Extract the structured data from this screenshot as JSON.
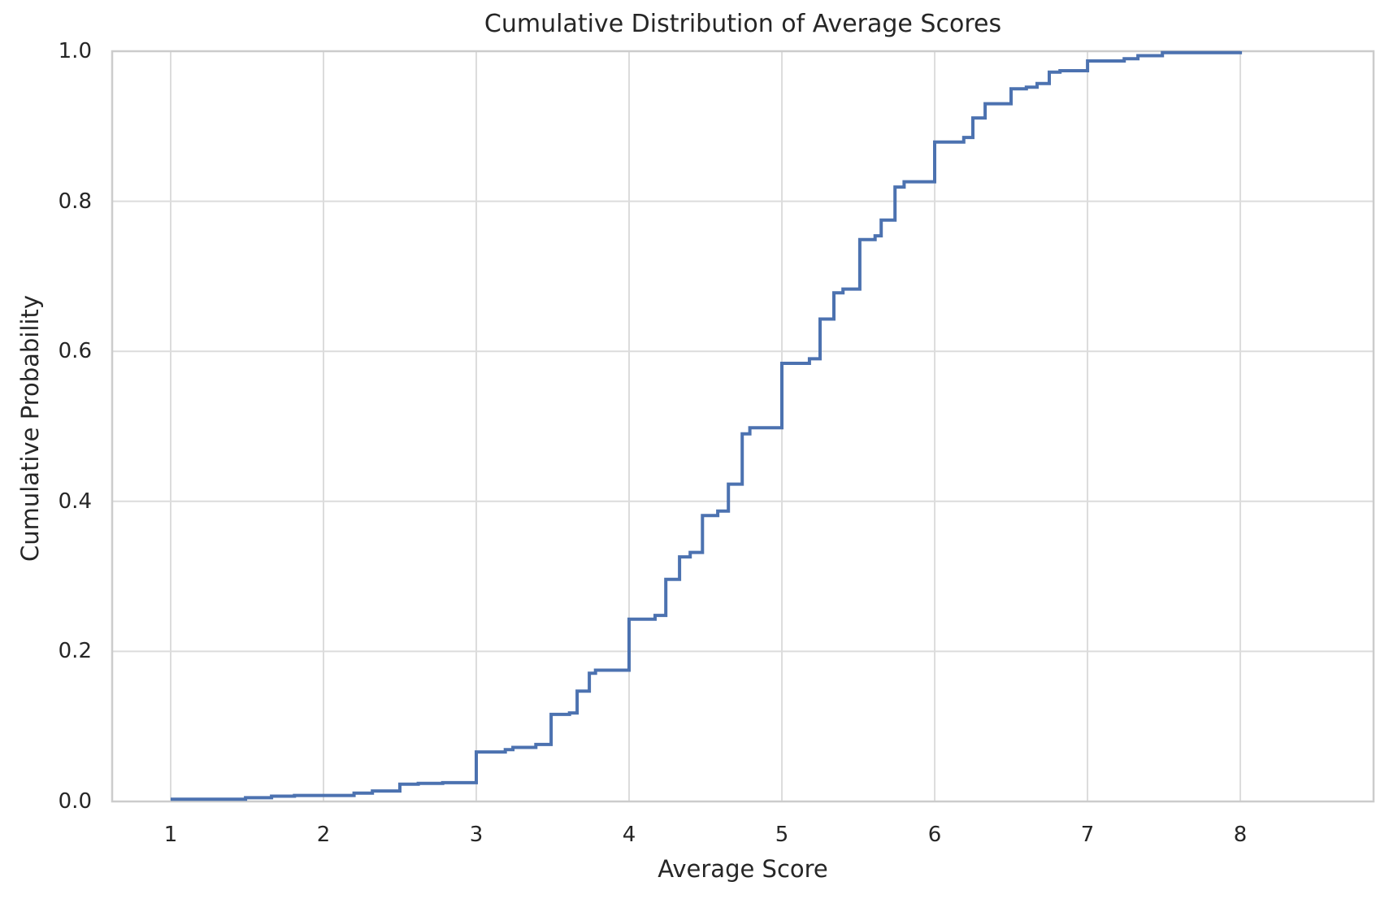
{
  "chart_data": {
    "type": "line",
    "subtype": "ecdf_step",
    "title": "Cumulative Distribution of Average Scores",
    "xlabel": "Average Score",
    "ylabel": "Cumulative Probability",
    "x_ticks": [
      1,
      2,
      3,
      4,
      5,
      6,
      7,
      8
    ],
    "y_ticks": [
      0.0,
      0.2,
      0.4,
      0.6,
      0.8,
      1.0
    ],
    "y_tick_labels": [
      "0.0",
      "0.2",
      "0.4",
      "0.6",
      "0.8",
      "1.0"
    ],
    "xlim": [
      0.617,
      8.872
    ],
    "ylim": [
      0.0,
      1.0
    ],
    "grid": true,
    "legend": "none",
    "line_color": "#4C72B0",
    "grid_color": "#dcdcdc",
    "spine_color": "#cccccc",
    "text_color": "#262626",
    "background_color": "#ffffff",
    "points": [
      [
        1.0,
        0.003
      ],
      [
        1.49,
        0.005
      ],
      [
        1.66,
        0.007
      ],
      [
        1.81,
        0.008
      ],
      [
        2.2,
        0.011
      ],
      [
        2.32,
        0.014
      ],
      [
        2.5,
        0.023
      ],
      [
        2.62,
        0.024
      ],
      [
        2.78,
        0.025
      ],
      [
        3.0,
        0.066
      ],
      [
        3.19,
        0.069
      ],
      [
        3.24,
        0.072
      ],
      [
        3.39,
        0.076
      ],
      [
        3.49,
        0.116
      ],
      [
        3.61,
        0.118
      ],
      [
        3.66,
        0.147
      ],
      [
        3.74,
        0.171
      ],
      [
        3.78,
        0.175
      ],
      [
        4.0,
        0.243
      ],
      [
        4.17,
        0.248
      ],
      [
        4.24,
        0.296
      ],
      [
        4.33,
        0.326
      ],
      [
        4.4,
        0.332
      ],
      [
        4.48,
        0.381
      ],
      [
        4.58,
        0.387
      ],
      [
        4.65,
        0.423
      ],
      [
        4.74,
        0.49
      ],
      [
        4.79,
        0.498
      ],
      [
        5.0,
        0.584
      ],
      [
        5.18,
        0.59
      ],
      [
        5.25,
        0.643
      ],
      [
        5.34,
        0.678
      ],
      [
        5.4,
        0.683
      ],
      [
        5.51,
        0.749
      ],
      [
        5.61,
        0.754
      ],
      [
        5.65,
        0.775
      ],
      [
        5.74,
        0.819
      ],
      [
        5.8,
        0.826
      ],
      [
        6.0,
        0.879
      ],
      [
        6.19,
        0.885
      ],
      [
        6.25,
        0.911
      ],
      [
        6.33,
        0.93
      ],
      [
        6.5,
        0.95
      ],
      [
        6.6,
        0.952
      ],
      [
        6.67,
        0.957
      ],
      [
        6.75,
        0.972
      ],
      [
        6.82,
        0.974
      ],
      [
        7.0,
        0.987
      ],
      [
        7.24,
        0.99
      ],
      [
        7.33,
        0.994
      ],
      [
        7.49,
        0.998
      ],
      [
        8.0,
        1.0
      ]
    ]
  }
}
